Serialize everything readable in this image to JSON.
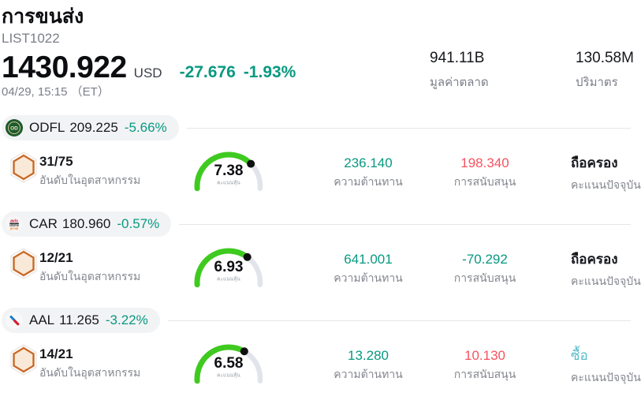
{
  "header": {
    "title": "การขนส่ง",
    "subtitle": "LIST1022",
    "price": "1430.922",
    "currency": "USD",
    "change": "-27.676",
    "change_pct": "-1.93%",
    "datetime": "04/29, 15:15 （ET）",
    "stats": [
      {
        "value": "941.11B",
        "label": "มูลค่าตลาด"
      },
      {
        "value": "130.58M",
        "label": "ปริมาตร"
      }
    ]
  },
  "labels": {
    "rank": "อันดับในอุตสาหกรรม",
    "score": "คะแนนหุ้น",
    "resistance": "ความต้านทาน",
    "support": "การสนับสนุน",
    "rating": "คะแนนปัจจุบัน"
  },
  "stocks": [
    {
      "ticker": "ODFL",
      "price": "209.225",
      "change_pct": "-5.66%",
      "logo_icon": "odfl-logo-icon",
      "rank": "31/75",
      "score": 7.38,
      "resistance": "236.140",
      "resistance_color": "#089981",
      "support": "198.340",
      "support_color": "#f7525f",
      "rating": "ถือครอง",
      "rating_color": "#16181d"
    },
    {
      "ticker": "CAR",
      "price": "180.960",
      "change_pct": "-0.57%",
      "logo_icon": "avis-budget-logo-icon",
      "rank": "12/21",
      "score": 6.93,
      "resistance": "641.001",
      "resistance_color": "#089981",
      "support": "-70.292",
      "support_color": "#089981",
      "rating": "ถือครอง",
      "rating_color": "#16181d"
    },
    {
      "ticker": "AAL",
      "price": "11.265",
      "change_pct": "-3.22%",
      "logo_icon": "american-airlines-logo-icon",
      "rank": "14/21",
      "score": 6.58,
      "resistance": "13.280",
      "resistance_color": "#089981",
      "support": "10.130",
      "support_color": "#f7525f",
      "rating": "ซื้อ",
      "rating_color": "#55bccb"
    }
  ],
  "colors": {
    "positive_teal": "#089981",
    "negative_red": "#f7525f",
    "gauge_green": "#3fca20",
    "gauge_track": "#e1e4eb",
    "buy_cyan": "#55bccb",
    "muted_text": "#7b7e88",
    "dark_text": "#131722",
    "pill_bg": "#f2f3f5"
  },
  "icons": {
    "industry_rank": "industry-radar-icon",
    "score_gauge": "score-gauge"
  }
}
